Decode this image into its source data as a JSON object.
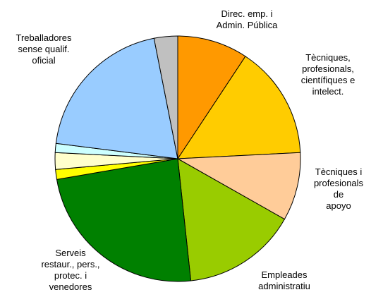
{
  "chart_data": {
    "type": "pie",
    "categories": [
      "Direc. emp. i\nAdmin. Pública",
      "Tècniques,\nprofesionals,\ncientífiques e\nintelect.",
      "Tècniques i\nprofesionals de\napoyo",
      "Empleades\nadministratiu",
      "Serveis\nrestaur., pers.,\nprotec. i\nvenedores",
      null,
      null,
      null,
      "Treballadores\nsense qualif.\noficial",
      null
    ],
    "values": [
      9.3,
      14.9,
      9.0,
      15.1,
      24.0,
      1.3,
      2.2,
      1.2,
      19.9,
      3.1
    ],
    "colors": [
      "#FF9900",
      "#FFCC00",
      "#FFCC99",
      "#99CC00",
      "#008000",
      "#FFFF00",
      "#FFFFCC",
      "#CCFFFF",
      "#99CCFF",
      "#C0C0C0"
    ]
  }
}
